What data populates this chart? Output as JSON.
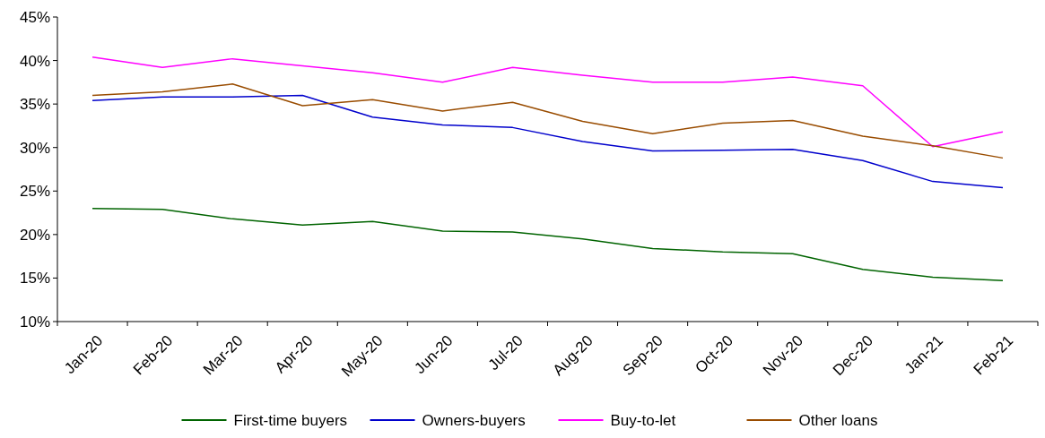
{
  "chart_data": {
    "type": "line",
    "categories": [
      "Jan-20",
      "Feb-20",
      "Mar-20",
      "Apr-20",
      "May-20",
      "Jun-20",
      "Jul-20",
      "Aug-20",
      "Sep-20",
      "Oct-20",
      "Nov-20",
      "Dec-20",
      "Jan-21",
      "Feb-21"
    ],
    "series": [
      {
        "name": "First-time buyers",
        "color": "#006400",
        "values": [
          23.0,
          22.9,
          21.8,
          21.1,
          21.5,
          20.4,
          20.3,
          19.5,
          18.4,
          18.0,
          17.8,
          16.0,
          15.1,
          14.7
        ]
      },
      {
        "name": "Owners-buyers",
        "color": "#0000cc",
        "values": [
          35.4,
          35.8,
          35.8,
          36.0,
          33.5,
          32.6,
          32.3,
          30.7,
          29.6,
          29.7,
          29.8,
          28.5,
          26.1,
          25.4
        ]
      },
      {
        "name": "Buy-to-let",
        "color": "#ff00ff",
        "values": [
          40.4,
          39.2,
          40.2,
          39.4,
          38.6,
          37.5,
          39.2,
          38.3,
          37.5,
          37.5,
          38.1,
          37.1,
          30.1,
          31.8
        ]
      },
      {
        "name": "Other loans",
        "color": "#994c00",
        "values": [
          36.0,
          36.4,
          37.3,
          34.8,
          35.5,
          34.2,
          35.2,
          33.0,
          31.6,
          32.8,
          33.1,
          31.3,
          30.2,
          28.8
        ]
      }
    ],
    "ylim": [
      10,
      45
    ],
    "yticks": [
      {
        "value": 10,
        "label": "10%"
      },
      {
        "value": 15,
        "label": "15%"
      },
      {
        "value": 20,
        "label": "20%"
      },
      {
        "value": 25,
        "label": "25%"
      },
      {
        "value": 30,
        "label": "30%"
      },
      {
        "value": 35,
        "label": "35%"
      },
      {
        "value": 40,
        "label": "40%"
      },
      {
        "value": 45,
        "label": "45%"
      }
    ],
    "legend": "bottom",
    "marker": "none",
    "grid": false
  }
}
